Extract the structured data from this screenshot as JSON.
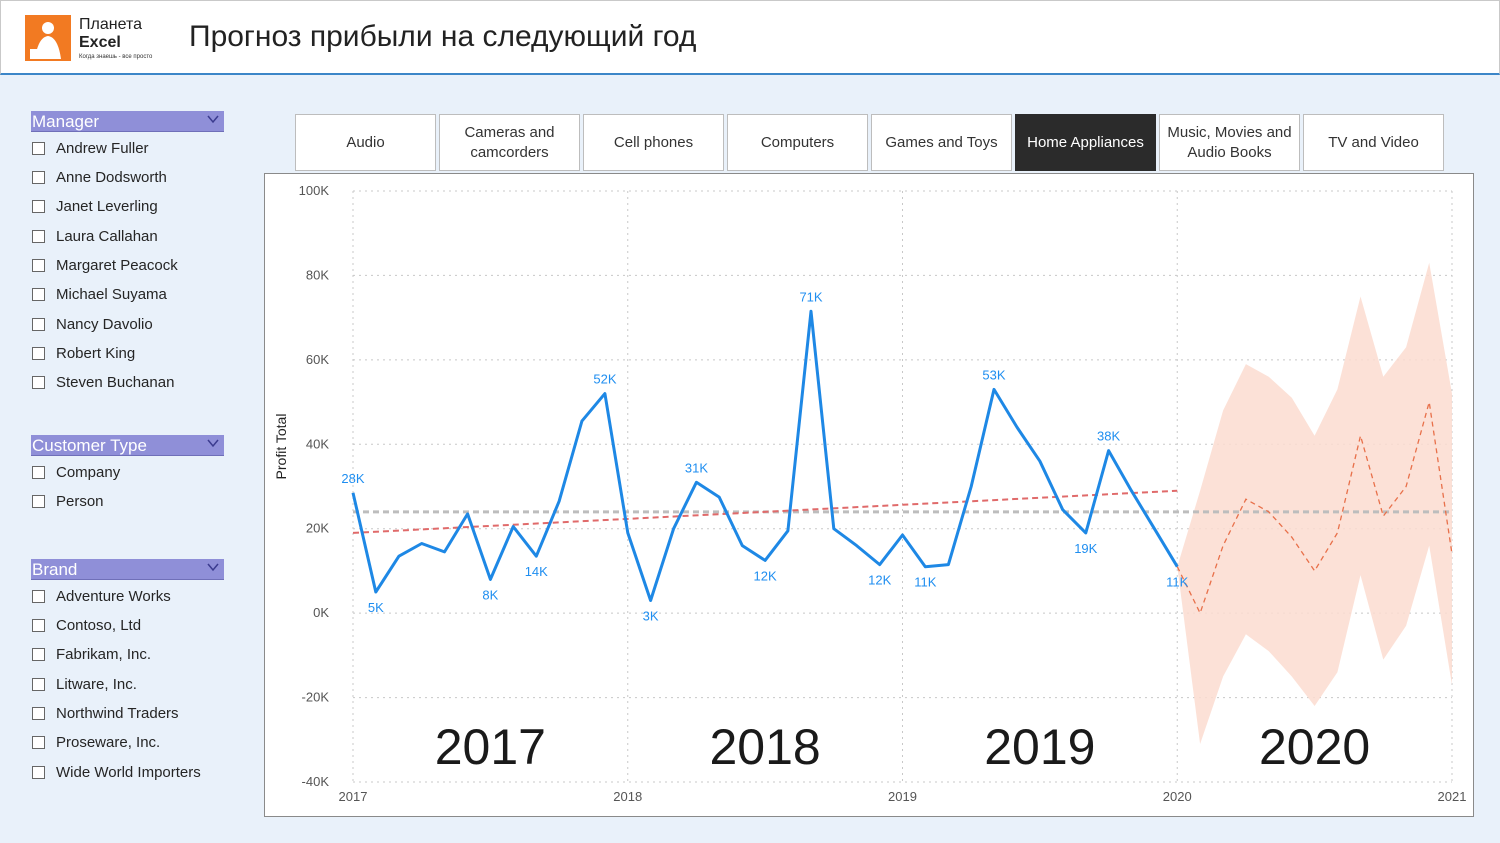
{
  "header": {
    "logo_line1": "Планета",
    "logo_line2": "Excel",
    "logo_tagline": "Когда знаешь - все просто",
    "title": "Прогноз прибыли на следующий год"
  },
  "slicers": {
    "manager": {
      "title": "Manager",
      "items": [
        "Andrew Fuller",
        "Anne Dodsworth",
        "Janet Leverling",
        "Laura Callahan",
        "Margaret Peacock",
        "Michael Suyama",
        "Nancy Davolio",
        "Robert King",
        "Steven Buchanan"
      ]
    },
    "customer_type": {
      "title": "Customer Type",
      "items": [
        "Company",
        "Person"
      ]
    },
    "brand": {
      "title": "Brand",
      "items": [
        "Adventure Works",
        "Contoso, Ltd",
        "Fabrikam, Inc.",
        "Litware, Inc.",
        "Northwind Traders",
        "Proseware, Inc.",
        "Wide World Importers"
      ]
    }
  },
  "tabs": [
    {
      "label": "Audio",
      "active": false
    },
    {
      "label": "Cameras and camcorders",
      "active": false
    },
    {
      "label": "Cell phones",
      "active": false
    },
    {
      "label": "Computers",
      "active": false
    },
    {
      "label": "Games and Toys",
      "active": false
    },
    {
      "label": "Home Appliances",
      "active": true
    },
    {
      "label": "Music, Movies and Audio Books",
      "active": false
    },
    {
      "label": "TV and Video",
      "active": false
    }
  ],
  "colors": {
    "actual_line": "#1e88e5",
    "trend_line": "#e06a6a",
    "average_line": "#bdbdbd",
    "forecast_line": "#e8704a",
    "forecast_band": "#fbdcd0",
    "active_tab": "#2b2b2b",
    "slicer_header": "#8f8fd8"
  },
  "chart_data": {
    "type": "line",
    "ylabel": "Profit Total",
    "ylim": [
      -40000,
      100000
    ],
    "y_ticks": [
      {
        "value": 100000,
        "label": "100K"
      },
      {
        "value": 80000,
        "label": "80K"
      },
      {
        "value": 60000,
        "label": "60K"
      },
      {
        "value": 40000,
        "label": "40K"
      },
      {
        "value": 20000,
        "label": "20K"
      },
      {
        "value": 0,
        "label": "0K"
      },
      {
        "value": -20000,
        "label": "-20K"
      },
      {
        "value": -40000,
        "label": "-40K"
      }
    ],
    "xlim": [
      2017,
      2021
    ],
    "x_ticks": [
      "2017",
      "2018",
      "2019",
      "2020",
      "2021"
    ],
    "year_labels": [
      {
        "x": 2017.5,
        "label": "2017"
      },
      {
        "x": 2018.5,
        "label": "2018"
      },
      {
        "x": 2019.5,
        "label": "2019"
      },
      {
        "x": 2020.5,
        "label": "2020"
      }
    ],
    "grid": true,
    "actual": {
      "x": [
        2017.0,
        2017.083,
        2017.167,
        2017.25,
        2017.333,
        2017.417,
        2017.5,
        2017.583,
        2017.667,
        2017.75,
        2017.833,
        2017.917,
        2018.0,
        2018.083,
        2018.167,
        2018.25,
        2018.333,
        2018.417,
        2018.5,
        2018.583,
        2018.667,
        2018.75,
        2018.833,
        2018.917,
        2019.0,
        2019.083,
        2019.167,
        2019.25,
        2019.333,
        2019.417,
        2019.5,
        2019.583,
        2019.667,
        2019.75,
        2019.833,
        2019.917,
        2020.0
      ],
      "y": [
        28500,
        5000,
        13500,
        16500,
        14500,
        23500,
        8000,
        20500,
        13500,
        26500,
        45500,
        52000,
        19000,
        3000,
        20000,
        31000,
        27500,
        16000,
        12500,
        19500,
        71500,
        20000,
        16000,
        11500,
        18500,
        11000,
        11500,
        30000,
        53000,
        44000,
        36000,
        24500,
        19000,
        38500,
        29000,
        20000,
        11000
      ]
    },
    "data_labels": [
      {
        "x": 2017.0,
        "y": 28500,
        "label": "28K",
        "pos": "above"
      },
      {
        "x": 2017.083,
        "y": 5000,
        "label": "5K",
        "pos": "below"
      },
      {
        "x": 2017.5,
        "y": 8000,
        "label": "8K",
        "pos": "below"
      },
      {
        "x": 2017.667,
        "y": 13500,
        "label": "14K",
        "pos": "below"
      },
      {
        "x": 2017.917,
        "y": 52000,
        "label": "52K",
        "pos": "above"
      },
      {
        "x": 2018.083,
        "y": 3000,
        "label": "3K",
        "pos": "below"
      },
      {
        "x": 2018.25,
        "y": 31000,
        "label": "31K",
        "pos": "above"
      },
      {
        "x": 2018.5,
        "y": 12500,
        "label": "12K",
        "pos": "below"
      },
      {
        "x": 2018.667,
        "y": 71500,
        "label": "71K",
        "pos": "above"
      },
      {
        "x": 2018.917,
        "y": 11500,
        "label": "12K",
        "pos": "below"
      },
      {
        "x": 2019.083,
        "y": 11000,
        "label": "11K",
        "pos": "below"
      },
      {
        "x": 2019.333,
        "y": 53000,
        "label": "53K",
        "pos": "above"
      },
      {
        "x": 2019.667,
        "y": 19000,
        "label": "19K",
        "pos": "below"
      },
      {
        "x": 2019.75,
        "y": 38500,
        "label": "38K",
        "pos": "above"
      },
      {
        "x": 2020.0,
        "y": 11000,
        "label": "11K",
        "pos": "below"
      }
    ],
    "trend": {
      "x": [
        2017.0,
        2020.0
      ],
      "y": [
        19000,
        29000
      ]
    },
    "average": {
      "y": 24000
    },
    "forecast": {
      "x": [
        2020.0,
        2020.083,
        2020.167,
        2020.25,
        2020.333,
        2020.417,
        2020.5,
        2020.583,
        2020.667,
        2020.75,
        2020.833,
        2020.917,
        2021.0
      ],
      "y": [
        11000,
        0,
        16000,
        27000,
        24000,
        18000,
        10000,
        19000,
        42000,
        23000,
        30000,
        50000,
        14000
      ],
      "upper": [
        11000,
        29000,
        48000,
        59000,
        56000,
        51000,
        42000,
        53000,
        75000,
        56000,
        63000,
        83000,
        52000
      ],
      "lower": [
        11000,
        -31000,
        -15000,
        -5000,
        -9000,
        -15000,
        -22000,
        -14000,
        9000,
        -11000,
        -3000,
        16000,
        -17000
      ]
    }
  }
}
